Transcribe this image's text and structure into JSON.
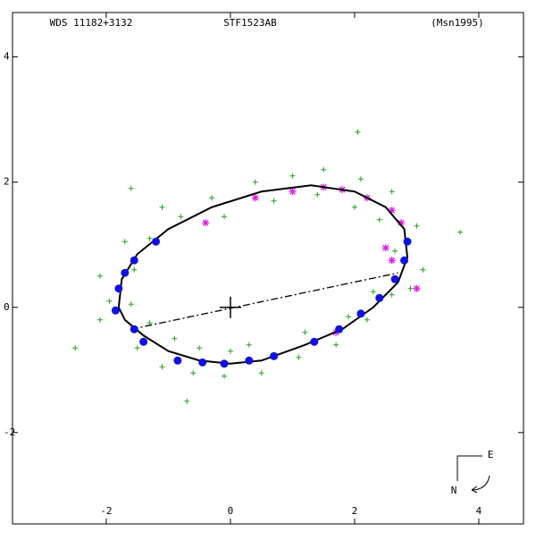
{
  "chart_data": {
    "type": "orbit",
    "title_left": "WDS 11182+3132",
    "title": "STF1523AB",
    "title_right": "(Msn1995)",
    "compass": {
      "east": "E",
      "north": "N"
    },
    "xlim": [
      -3.51,
      4.72
    ],
    "ylim": [
      -3.46,
      4.71
    ],
    "xticks": [
      -2,
      0,
      2,
      4
    ],
    "yticks": [
      -2,
      0,
      2,
      4
    ],
    "orbit": {
      "color": "#000000",
      "x": [
        -1.8,
        -1.75,
        -1.5,
        -1.0,
        -0.3,
        0.5,
        1.3,
        2.0,
        2.5,
        2.8,
        2.85,
        2.7,
        2.3,
        1.8,
        1.2,
        0.5,
        0.0,
        -0.5,
        -1.0,
        -1.4,
        -1.7,
        -1.8
      ],
      "y": [
        0.0,
        0.45,
        0.85,
        1.25,
        1.6,
        1.85,
        1.95,
        1.85,
        1.6,
        1.25,
        0.8,
        0.4,
        0.0,
        -0.35,
        -0.6,
        -0.85,
        -0.9,
        -0.85,
        -0.7,
        -0.45,
        -0.2,
        0.0
      ]
    },
    "node_line": {
      "color": "#000000",
      "x": [
        -1.6,
        2.7
      ],
      "y": [
        -0.35,
        0.55
      ]
    },
    "primary": {
      "x": 0,
      "y": 0
    },
    "visual_obs": {
      "color": "#22a022",
      "x": [
        -1.95,
        -1.6,
        -2.1,
        -1.55,
        -1.3,
        -1.7,
        -0.8,
        -1.1,
        -0.3,
        -0.1,
        0.4,
        0.7,
        1.0,
        1.5,
        1.4,
        2.1,
        2.0,
        2.6,
        2.4,
        3.0,
        2.65,
        3.1,
        2.6,
        2.9,
        2.2,
        2.3,
        1.7,
        1.9,
        1.1,
        1.2,
        0.5,
        0.3,
        -0.1,
        0.0,
        -0.6,
        -0.5,
        -1.1,
        -0.9,
        -1.5,
        -1.3,
        -2.5,
        -2.1,
        2.05,
        3.7,
        -1.6,
        -0.7
      ],
      "y": [
        0.1,
        0.05,
        0.5,
        0.6,
        1.1,
        1.05,
        1.45,
        1.6,
        1.75,
        1.45,
        2.0,
        1.7,
        2.1,
        2.2,
        1.8,
        2.05,
        1.6,
        1.85,
        1.4,
        1.3,
        0.9,
        0.6,
        0.2,
        0.3,
        -0.2,
        0.25,
        -0.6,
        -0.15,
        -0.8,
        -0.4,
        -1.05,
        -0.6,
        -1.1,
        -0.7,
        -1.05,
        -0.65,
        -0.95,
        -0.5,
        -0.65,
        -0.25,
        -0.65,
        -0.2,
        2.8,
        1.2,
        1.9,
        -1.5
      ]
    },
    "speckle_obs": {
      "color": "#1010e0",
      "x": [
        -1.85,
        -1.8,
        -1.7,
        -1.55,
        -1.2,
        -1.55,
        -1.4,
        -0.85,
        -0.45,
        -0.1,
        0.3,
        0.7,
        1.35,
        1.75,
        2.1,
        2.4,
        2.65,
        2.8,
        2.85
      ],
      "y": [
        -0.05,
        0.3,
        0.55,
        0.75,
        1.05,
        -0.35,
        -0.55,
        -0.85,
        -0.88,
        -0.9,
        -0.85,
        -0.78,
        -0.55,
        -0.35,
        -0.1,
        0.15,
        0.45,
        0.75,
        1.05
      ]
    },
    "other_obs": {
      "color": "#e020e0",
      "x": [
        0.4,
        1.0,
        1.5,
        1.8,
        2.2,
        2.6,
        2.75,
        2.5,
        3.0,
        1.7,
        -0.4,
        2.6
      ],
      "y": [
        1.75,
        1.85,
        1.92,
        1.88,
        1.75,
        1.55,
        1.35,
        0.95,
        0.3,
        -0.4,
        1.35,
        0.75
      ]
    }
  }
}
